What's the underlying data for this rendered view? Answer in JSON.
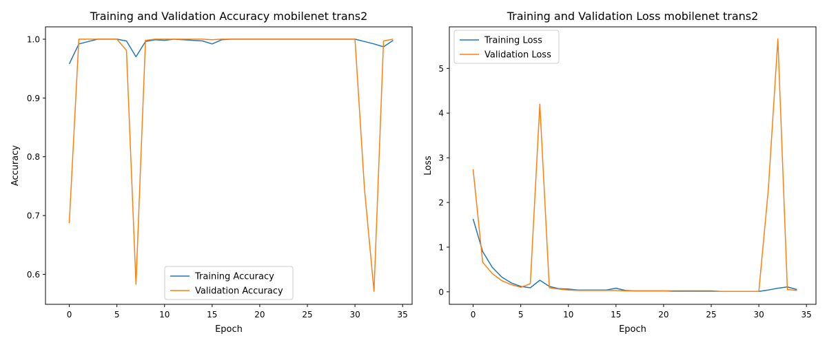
{
  "chart_data": [
    {
      "type": "line",
      "title": "Training and Validation Accuracy mobilenet trans2",
      "xlabel": "Epoch",
      "ylabel": "Accuracy",
      "xlim": [
        -2.5,
        36.0
      ],
      "ylim": [
        0.549,
        1.021
      ],
      "xticks": [
        0,
        5,
        10,
        15,
        20,
        25,
        30,
        35
      ],
      "yticks": [
        0.6,
        0.7,
        0.8,
        0.9,
        1.0
      ],
      "ytick_labels": [
        "0.6",
        "0.7",
        "0.8",
        "0.9",
        "1.0"
      ],
      "legend_position": "bottom-center",
      "grid": false,
      "series": [
        {
          "name": "Training Accuracy",
          "color": "#1f77b4",
          "x": [
            0,
            1,
            2,
            3,
            4,
            5,
            6,
            7,
            8,
            9,
            10,
            11,
            12,
            13,
            14,
            15,
            16,
            17,
            18,
            19,
            20,
            21,
            22,
            23,
            24,
            25,
            26,
            27,
            28,
            29,
            30,
            31,
            32,
            33,
            34
          ],
          "values": [
            0.958,
            0.992,
            0.996,
            1.0,
            1.0,
            1.0,
            0.997,
            0.97,
            0.996,
            0.999,
            0.998,
            1.0,
            0.999,
            0.998,
            0.997,
            0.992,
            0.999,
            1.0,
            1.0,
            1.0,
            1.0,
            1.0,
            1.0,
            1.0,
            1.0,
            1.0,
            1.0,
            1.0,
            1.0,
            1.0,
            1.0,
            0.996,
            0.992,
            0.987,
            0.998
          ]
        },
        {
          "name": "Validation Accuracy",
          "color": "#ff7f0e",
          "x": [
            0,
            1,
            2,
            3,
            4,
            5,
            6,
            7,
            8,
            9,
            10,
            11,
            12,
            13,
            14,
            15,
            16,
            17,
            18,
            19,
            20,
            21,
            22,
            23,
            24,
            25,
            26,
            27,
            28,
            29,
            30,
            31,
            32,
            33,
            34
          ],
          "values": [
            0.687,
            1.0,
            1.0,
            1.0,
            1.0,
            1.0,
            0.981,
            0.583,
            0.998,
            1.0,
            1.0,
            1.0,
            1.0,
            1.0,
            1.0,
            0.999,
            1.0,
            1.0,
            1.0,
            1.0,
            1.0,
            1.0,
            1.0,
            1.0,
            1.0,
            1.0,
            1.0,
            1.0,
            1.0,
            1.0,
            1.0,
            0.745,
            0.571,
            0.997,
            1.0
          ]
        }
      ]
    },
    {
      "type": "line",
      "title": "Training and Validation Loss mobilenet trans2",
      "xlabel": "Epoch",
      "ylabel": "Loss",
      "xlim": [
        -2.5,
        36.0
      ],
      "ylim": [
        -0.28,
        5.93
      ],
      "xticks": [
        0,
        5,
        10,
        15,
        20,
        25,
        30,
        35
      ],
      "yticks": [
        0,
        1,
        2,
        3,
        4,
        5
      ],
      "ytick_labels": [
        "0",
        "1",
        "2",
        "3",
        "4",
        "5"
      ],
      "legend_position": "top-left",
      "grid": false,
      "series": [
        {
          "name": "Training Loss",
          "color": "#1f77b4",
          "x": [
            0,
            1,
            2,
            3,
            4,
            5,
            6,
            7,
            8,
            9,
            10,
            11,
            12,
            13,
            14,
            15,
            16,
            17,
            18,
            19,
            20,
            21,
            22,
            23,
            24,
            25,
            26,
            27,
            28,
            29,
            30,
            31,
            32,
            33,
            34
          ],
          "values": [
            1.63,
            0.9,
            0.55,
            0.33,
            0.2,
            0.12,
            0.09,
            0.26,
            0.12,
            0.07,
            0.06,
            0.04,
            0.04,
            0.04,
            0.04,
            0.08,
            0.03,
            0.02,
            0.02,
            0.02,
            0.02,
            0.02,
            0.02,
            0.02,
            0.02,
            0.02,
            0.01,
            0.01,
            0.01,
            0.01,
            0.01,
            0.04,
            0.08,
            0.11,
            0.05
          ]
        },
        {
          "name": "Validation Loss",
          "color": "#ff7f0e",
          "x": [
            0,
            1,
            2,
            3,
            4,
            5,
            6,
            7,
            8,
            9,
            10,
            11,
            12,
            13,
            14,
            15,
            16,
            17,
            18,
            19,
            20,
            21,
            22,
            23,
            24,
            25,
            26,
            27,
            28,
            29,
            30,
            31,
            32,
            33,
            34
          ],
          "values": [
            2.74,
            0.66,
            0.41,
            0.25,
            0.16,
            0.1,
            0.18,
            4.2,
            0.09,
            0.06,
            0.04,
            0.03,
            0.03,
            0.03,
            0.03,
            0.03,
            0.02,
            0.02,
            0.02,
            0.02,
            0.02,
            0.01,
            0.01,
            0.01,
            0.01,
            0.01,
            0.01,
            0.01,
            0.01,
            0.01,
            0.01,
            2.3,
            5.66,
            0.05,
            0.03
          ]
        }
      ]
    }
  ]
}
